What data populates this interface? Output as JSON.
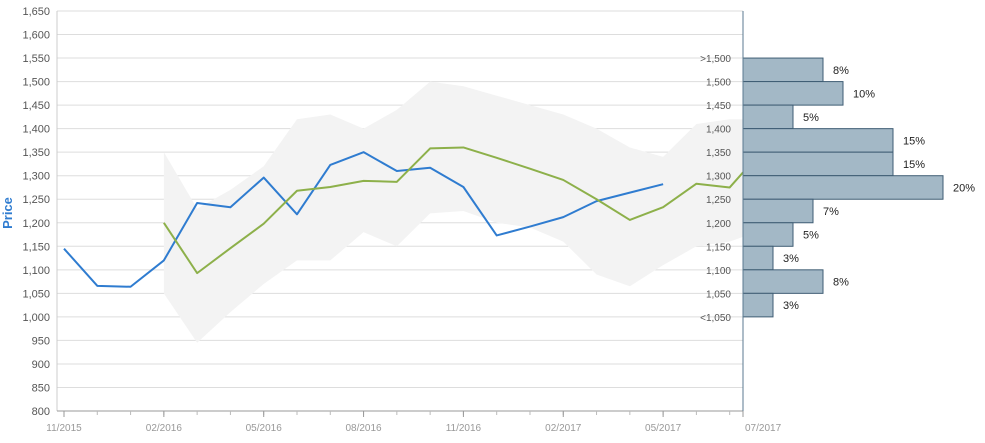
{
  "chart_data": {
    "type": "line",
    "ylabel": "Price",
    "ylim": [
      800,
      1650
    ],
    "y_ticks": [
      "1,650",
      "1,600",
      "1,550",
      "1,500",
      "1,450",
      "1,400",
      "1,350",
      "1,300",
      "1,250",
      "1,200",
      "1,150",
      "1,100",
      "1,050",
      "1,000",
      "950",
      "900",
      "850",
      "800"
    ],
    "y_tick_values": [
      1650,
      1600,
      1550,
      1500,
      1450,
      1400,
      1350,
      1300,
      1250,
      1200,
      1150,
      1100,
      1050,
      1000,
      950,
      900,
      850,
      800
    ],
    "x_ticks": [
      "11/2015",
      "02/2016",
      "05/2016",
      "08/2016",
      "11/2016",
      "02/2017",
      "05/2017",
      "07/2017"
    ],
    "x_tick_positions": [
      0,
      3,
      6,
      9,
      12,
      15,
      18,
      20.4
    ],
    "x_range": [
      0,
      20.4
    ],
    "grid": "horizontal",
    "colors": {
      "series_blue": "#2f7cd0",
      "series_green": "#8db04a",
      "band": "#f3f3f3",
      "hist_fill": "#a3b8c6",
      "hist_stroke": "#3f5d74",
      "axis_label": "#2f7cd0"
    },
    "series": [
      {
        "color": "#2f7cd0",
        "x": [
          0,
          1,
          2,
          3,
          4,
          5,
          6,
          7,
          8,
          9,
          10,
          11,
          12,
          13,
          14,
          15,
          16,
          17,
          18
        ],
        "values": [
          1145,
          1066,
          1064,
          1120,
          1242,
          1233,
          1296,
          1218,
          1323,
          1350,
          1310,
          1317,
          1276,
          1173,
          1192,
          1212,
          1246,
          1264,
          1282
        ]
      },
      {
        "color": "#8db04a",
        "x": [
          3,
          4,
          5,
          6,
          7,
          8,
          9,
          10,
          11,
          12,
          13,
          14,
          15,
          16,
          17,
          18,
          19,
          20,
          20.4
        ],
        "values": [
          1200,
          1093,
          1146,
          1198,
          1268,
          1276,
          1289,
          1287,
          1358,
          1360,
          1338,
          1315,
          1291,
          1250,
          1206,
          1233,
          1283,
          1275,
          1307
        ]
      }
    ],
    "range_band": {
      "x": [
        3,
        4,
        5,
        6,
        7,
        8,
        9,
        10,
        11,
        12,
        13,
        14,
        15,
        16,
        17,
        18,
        19,
        20,
        20.4
      ],
      "upper": [
        1350,
        1230,
        1270,
        1320,
        1420,
        1430,
        1400,
        1440,
        1500,
        1490,
        1470,
        1450,
        1430,
        1400,
        1360,
        1340,
        1410,
        1420,
        1420
      ],
      "lower": [
        1050,
        945,
        1010,
        1070,
        1120,
        1120,
        1180,
        1150,
        1220,
        1225,
        1200,
        1190,
        1160,
        1090,
        1065,
        1110,
        1150,
        1160,
        1170
      ]
    },
    "histogram": {
      "bins": [
        {
          "label": ">1,500",
          "low": 1500,
          "high": 1550,
          "pct": 8,
          "text": "8%"
        },
        {
          "label": "1,500",
          "low": 1450,
          "high": 1500,
          "pct": 10,
          "text": "10%"
        },
        {
          "label": "1,450",
          "low": 1400,
          "high": 1450,
          "pct": 5,
          "text": "5%"
        },
        {
          "label": "1,400",
          "low": 1350,
          "high": 1400,
          "pct": 15,
          "text": "15%"
        },
        {
          "label": "1,350",
          "low": 1300,
          "high": 1350,
          "pct": 15,
          "text": "15%"
        },
        {
          "label": "1,300",
          "low": 1250,
          "high": 1300,
          "pct": 20,
          "text": "20%"
        },
        {
          "label": "1,250",
          "low": 1200,
          "high": 1250,
          "pct": 7,
          "text": "7%"
        },
        {
          "label": "1,200",
          "low": 1150,
          "high": 1200,
          "pct": 5,
          "text": "5%"
        },
        {
          "label": "1,150",
          "low": 1100,
          "high": 1150,
          "pct": 3,
          "text": "3%"
        },
        {
          "label": "1,100",
          "low": 1050,
          "high": 1100,
          "pct": 8,
          "text": "8%"
        },
        {
          "label": "1,050",
          "low": 1000,
          "high": 1050,
          "pct": 3,
          "text": "3%"
        },
        {
          "label": "<1,050",
          "low": null,
          "high": null,
          "pct": null,
          "text": ""
        }
      ]
    }
  }
}
